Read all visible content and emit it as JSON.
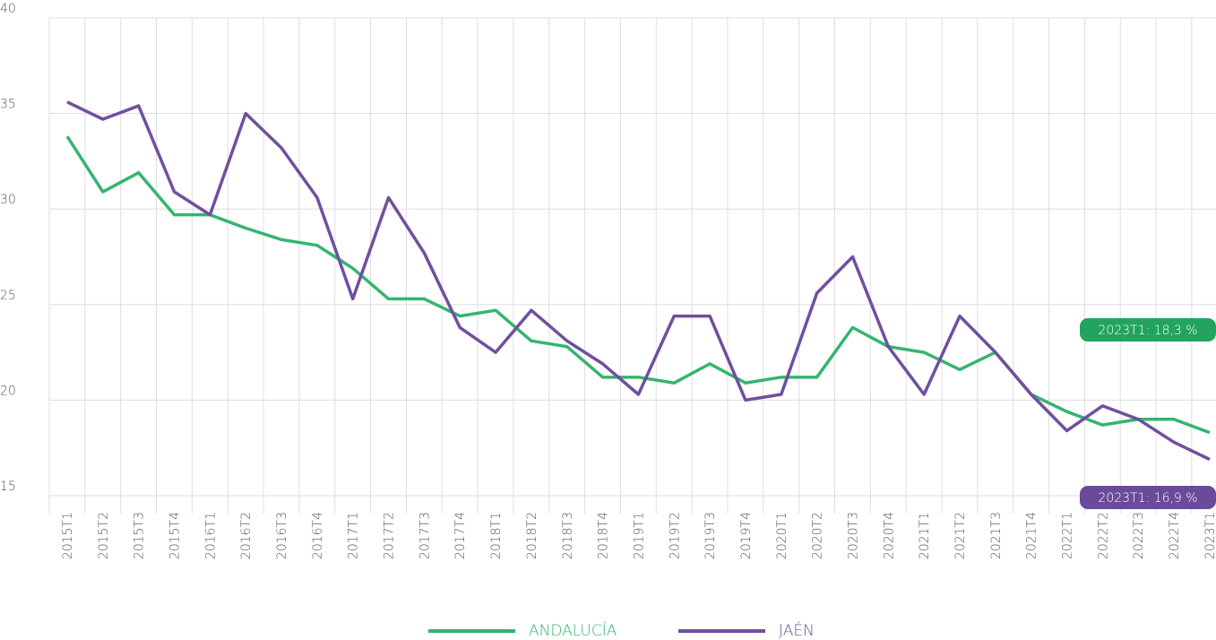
{
  "chart_data": {
    "type": "line",
    "categories": [
      "2015T1",
      "2015T2",
      "2015T3",
      "2015T4",
      "2016T1",
      "2016T2",
      "2016T3",
      "2016T4",
      "2017T1",
      "2017T2",
      "2017T3",
      "2017T4",
      "2018T1",
      "2018T2",
      "2018T3",
      "2018T4",
      "2019T1",
      "2019T2",
      "2019T3",
      "2019T4",
      "2020T1",
      "2020T2",
      "2020T3",
      "2020T4",
      "2021T1",
      "2021T2",
      "2021T3",
      "2021T4",
      "2022T1",
      "2022T2",
      "2022T3",
      "2022T4",
      "2023T1"
    ],
    "series": [
      {
        "name": "ANDALUCÍA",
        "color": "#34b56f",
        "label_color": "#23a35d",
        "end_label": "2023T1: 18,3 %",
        "values": [
          33.8,
          30.9,
          31.9,
          29.7,
          29.7,
          29.0,
          28.4,
          28.1,
          26.9,
          25.3,
          25.3,
          24.4,
          24.7,
          23.1,
          22.8,
          21.2,
          21.2,
          20.9,
          21.9,
          20.9,
          21.2,
          21.2,
          23.8,
          22.8,
          22.5,
          21.6,
          22.5,
          20.3,
          19.4,
          18.7,
          19.0,
          19.0,
          18.3
        ]
      },
      {
        "name": "JAÉN",
        "color": "#704f9f",
        "label_color": "#6b4a9b",
        "end_label": "2023T1: 16,9 %",
        "values": [
          35.6,
          34.7,
          35.4,
          30.9,
          29.7,
          35.0,
          33.2,
          30.6,
          25.3,
          30.6,
          27.7,
          23.8,
          22.5,
          24.7,
          23.1,
          21.9,
          20.3,
          24.4,
          24.4,
          20.0,
          20.3,
          25.6,
          27.5,
          22.8,
          20.3,
          24.4,
          22.5,
          20.3,
          18.4,
          19.7,
          19.0,
          17.8,
          16.9
        ]
      }
    ],
    "ylim": [
      15,
      40
    ],
    "yticks": [
      15,
      20,
      25,
      30,
      35,
      40
    ],
    "grid": true
  }
}
